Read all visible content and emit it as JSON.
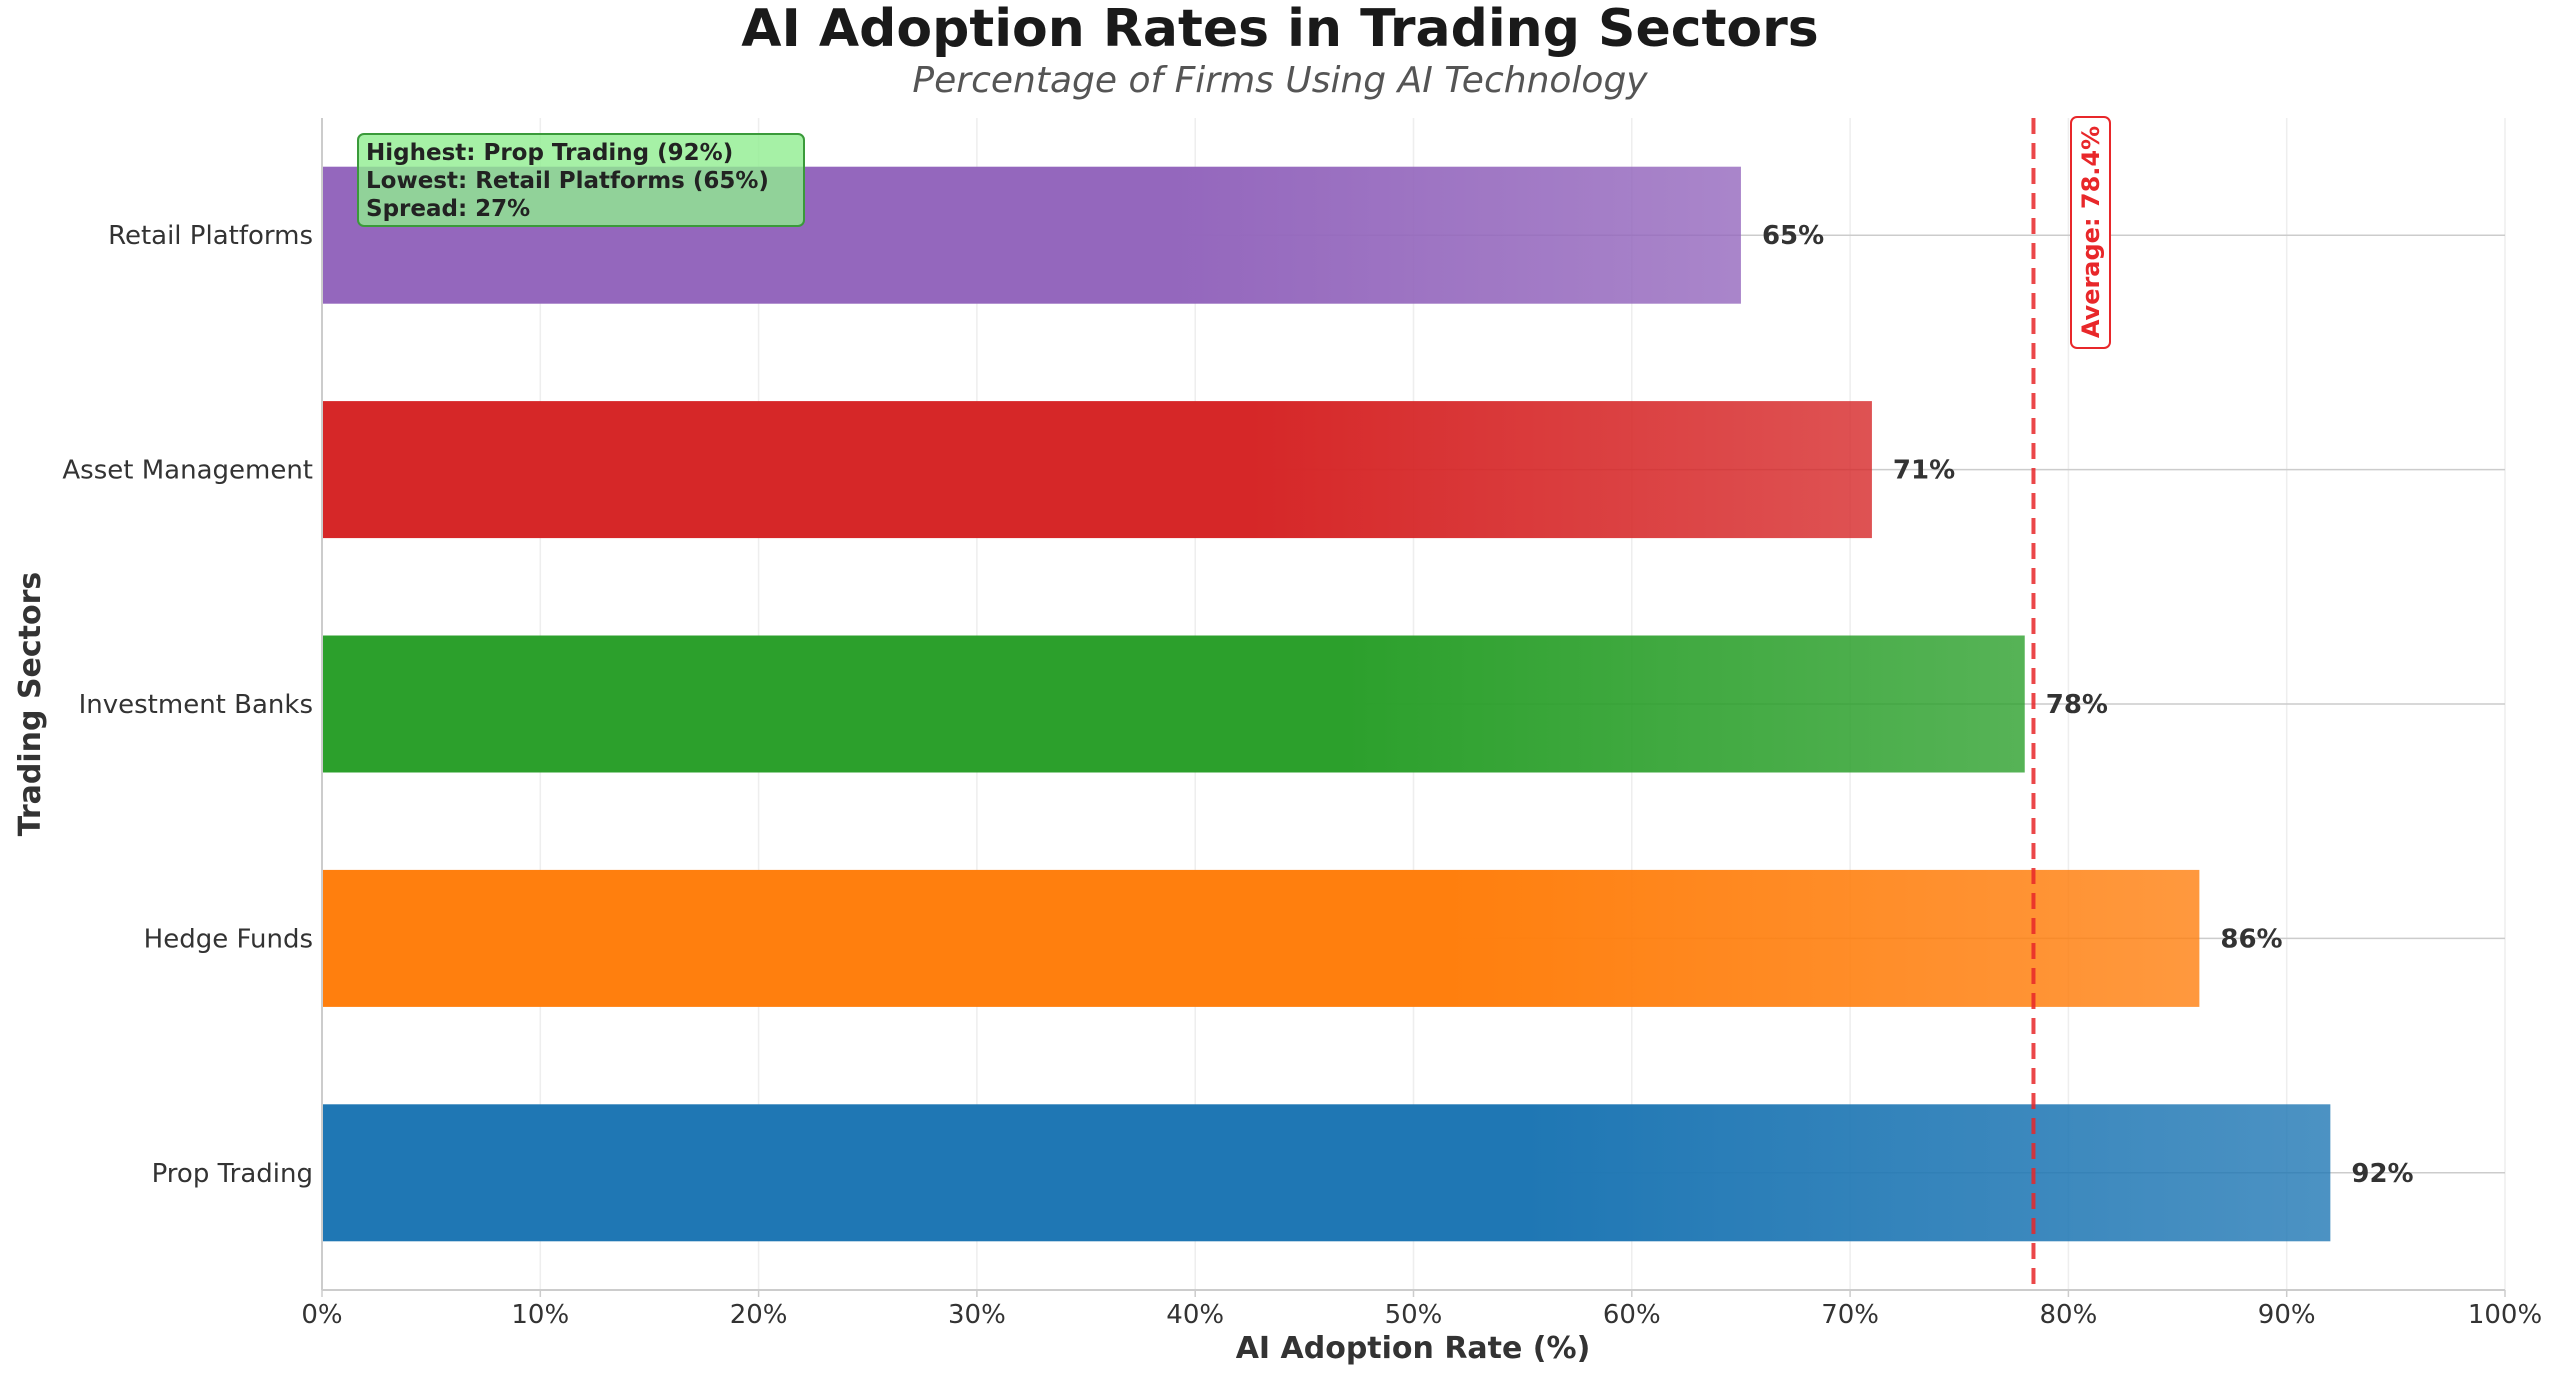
{
  "chart_data": {
    "type": "bar",
    "orientation": "horizontal",
    "title": "AI Adoption Rates in Trading Sectors",
    "subtitle": "Percentage of Firms Using AI Technology",
    "xlabel": "AI Adoption Rate (%)",
    "ylabel": "Trading Sectors",
    "xlim": [
      0,
      100
    ],
    "xticks": [
      "0%",
      "10%",
      "20%",
      "30%",
      "40%",
      "50%",
      "60%",
      "70%",
      "80%",
      "90%",
      "100%"
    ],
    "grid": true,
    "categories": [
      "Prop Trading",
      "Hedge Funds",
      "Investment Banks",
      "Asset Management",
      "Retail Platforms"
    ],
    "values": [
      92,
      86,
      78,
      71,
      65
    ],
    "value_labels": [
      "92%",
      "86%",
      "78%",
      "71%",
      "65%"
    ],
    "colors": [
      "#1f77b4",
      "#ff7f0e",
      "#2ca02c",
      "#d62728",
      "#9467bd"
    ],
    "average": {
      "value": 78.4,
      "label": "Average: 78.4%",
      "color": "#e8272a"
    },
    "annotation": {
      "lines": [
        "Highest: Prop Trading (92%)",
        "Lowest: Retail Platforms (65%)",
        "Spread: 27%"
      ],
      "color": "#90ee90"
    }
  }
}
